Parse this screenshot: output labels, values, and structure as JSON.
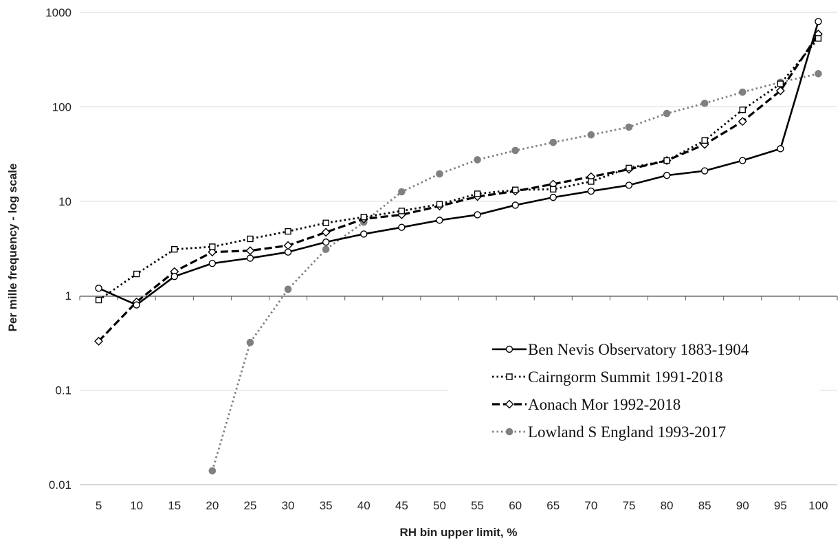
{
  "chart_data": {
    "type": "line",
    "title": "",
    "xlabel": "RH bin upper limit, %",
    "ylabel": "Per mille frequency - log scale",
    "yscale": "log",
    "ylim": [
      0.01,
      1000
    ],
    "yticks": [
      "0.01",
      "0.1",
      "1",
      "10",
      "100",
      "1000"
    ],
    "categories": [
      "5",
      "10",
      "15",
      "20",
      "25",
      "30",
      "35",
      "40",
      "45",
      "50",
      "55",
      "60",
      "65",
      "70",
      "75",
      "80",
      "85",
      "90",
      "95",
      "100"
    ],
    "grid": "horizontal",
    "legend_position": "bottom-right",
    "series": [
      {
        "name": "Ben Nevis Observatory 1883-1904",
        "line_style": "solid",
        "marker": "open-circle",
        "color": "#000000",
        "values": [
          1.2,
          0.8,
          1.6,
          2.2,
          2.5,
          2.9,
          3.7,
          4.5,
          5.3,
          6.3,
          7.2,
          9.1,
          11,
          12.8,
          14.8,
          18.8,
          21,
          27,
          36,
          800
        ]
      },
      {
        "name": "Cairngorm Summit 1991-2018",
        "line_style": "dotted",
        "marker": "open-square",
        "color": "#000000",
        "values": [
          0.9,
          1.7,
          3.1,
          3.3,
          4.0,
          4.8,
          5.9,
          6.8,
          7.9,
          9.3,
          12,
          13.2,
          13.4,
          16.2,
          22.5,
          27,
          44,
          93,
          175,
          530
        ]
      },
      {
        "name": "Aonach Mor 1992-2018",
        "line_style": "dashed",
        "marker": "open-diamond",
        "color": "#000000",
        "values": [
          0.33,
          0.86,
          1.8,
          2.9,
          3.0,
          3.4,
          4.7,
          6.5,
          7.2,
          8.9,
          11.2,
          12.8,
          15.2,
          18.2,
          21.8,
          27,
          40,
          70,
          148,
          590
        ]
      },
      {
        "name": "Lowland S England 1993-2017",
        "line_style": "dotted",
        "marker": "filled-circle",
        "color": "#808080",
        "values": [
          null,
          null,
          null,
          0.014,
          0.32,
          1.17,
          3.1,
          6.0,
          12.6,
          19.5,
          27.5,
          34.5,
          42,
          50.5,
          61,
          85,
          109,
          143,
          182,
          224
        ]
      }
    ]
  }
}
